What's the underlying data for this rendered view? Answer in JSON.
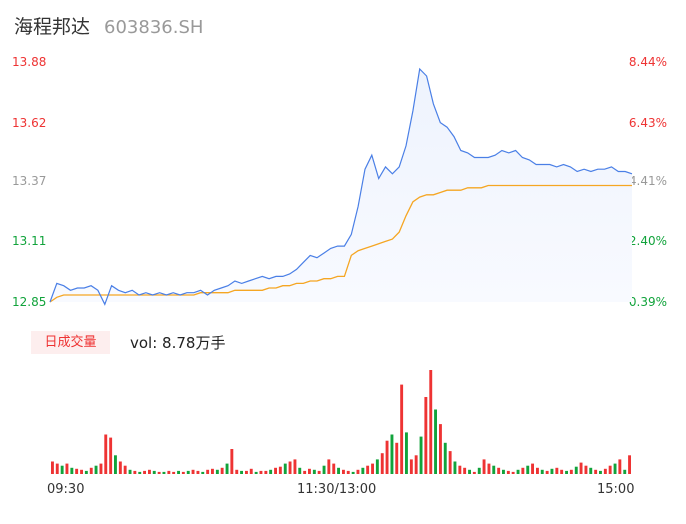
{
  "header": {
    "name": "海程邦达",
    "code": "603836.SH"
  },
  "volume_panel": {
    "tag": "日成交量",
    "label": "vol: 8.78万手"
  },
  "colors": {
    "price": "#4a7fe6",
    "avg": "#f5a623",
    "up": "#ee3333",
    "down": "#11a33b",
    "neutral": "#999999"
  },
  "chart_data": [
    {
      "type": "line",
      "ylim": [
        12.85,
        13.88
      ],
      "y_ticks": [
        {
          "label": "13.88",
          "value": 13.88,
          "pct": "8.44%",
          "color": "#ee3333"
        },
        {
          "label": "13.62",
          "value": 13.62,
          "pct": "6.43%",
          "color": "#ee3333"
        },
        {
          "label": "13.37",
          "value": 13.37,
          "pct": "4.41%",
          "color": "#999999"
        },
        {
          "label": "13.11",
          "value": 13.11,
          "pct": "2.40%",
          "color": "#11a33b"
        },
        {
          "label": "12.85",
          "value": 12.85,
          "pct": "0.39%",
          "color": "#11a33b"
        }
      ],
      "x_ticks": [
        "09:30",
        "11:30/13:00",
        "15:00"
      ],
      "series": [
        {
          "key": "price",
          "values": [
            12.85,
            12.93,
            12.92,
            12.9,
            12.91,
            12.91,
            12.92,
            12.9,
            12.84,
            12.92,
            12.9,
            12.89,
            12.9,
            12.88,
            12.89,
            12.88,
            12.89,
            12.88,
            12.89,
            12.88,
            12.89,
            12.89,
            12.9,
            12.88,
            12.9,
            12.91,
            12.92,
            12.94,
            12.93,
            12.94,
            12.95,
            12.96,
            12.95,
            12.96,
            12.96,
            12.97,
            12.99,
            13.02,
            13.05,
            13.04,
            13.06,
            13.08,
            13.09,
            13.09,
            13.14,
            13.26,
            13.42,
            13.48,
            13.38,
            13.43,
            13.4,
            13.43,
            13.52,
            13.67,
            13.85,
            13.82,
            13.7,
            13.62,
            13.6,
            13.56,
            13.5,
            13.49,
            13.47,
            13.47,
            13.47,
            13.48,
            13.5,
            13.49,
            13.5,
            13.47,
            13.46,
            13.44,
            13.44,
            13.44,
            13.43,
            13.44,
            13.43,
            13.41,
            13.42,
            13.41,
            13.42,
            13.42,
            13.43,
            13.41,
            13.41,
            13.4
          ]
        },
        {
          "key": "avg",
          "values": [
            12.85,
            12.87,
            12.88,
            12.88,
            12.88,
            12.88,
            12.88,
            12.88,
            12.88,
            12.88,
            12.88,
            12.88,
            12.88,
            12.88,
            12.88,
            12.88,
            12.88,
            12.88,
            12.88,
            12.88,
            12.88,
            12.88,
            12.89,
            12.89,
            12.89,
            12.89,
            12.89,
            12.9,
            12.9,
            12.9,
            12.9,
            12.9,
            12.91,
            12.91,
            12.92,
            12.92,
            12.93,
            12.93,
            12.94,
            12.94,
            12.95,
            12.95,
            12.96,
            12.96,
            13.05,
            13.07,
            13.08,
            13.09,
            13.1,
            13.11,
            13.12,
            13.15,
            13.22,
            13.28,
            13.3,
            13.31,
            13.31,
            13.32,
            13.33,
            13.33,
            13.33,
            13.34,
            13.34,
            13.34,
            13.35,
            13.35,
            13.35,
            13.35,
            13.35,
            13.35,
            13.35,
            13.35,
            13.35,
            13.35,
            13.35,
            13.35,
            13.35,
            13.35,
            13.35,
            13.35,
            13.35,
            13.35,
            13.35,
            13.35,
            13.35,
            13.35
          ]
        }
      ]
    },
    {
      "type": "bar",
      "title": "日成交量",
      "ylim": [
        0,
        100
      ],
      "values": [
        12,
        10,
        8,
        10,
        6,
        5,
        4,
        3,
        6,
        8,
        10,
        38,
        35,
        18,
        12,
        8,
        4,
        3,
        2,
        3,
        4,
        3,
        2,
        2,
        3,
        2,
        3,
        2,
        3,
        4,
        3,
        2,
        4,
        5,
        4,
        6,
        10,
        24,
        4,
        3,
        3,
        5,
        2,
        3,
        3,
        4,
        6,
        7,
        10,
        12,
        14,
        6,
        3,
        5,
        4,
        3,
        8,
        14,
        10,
        6,
        4,
        3,
        2,
        4,
        6,
        8,
        10,
        14,
        20,
        32,
        38,
        30,
        86,
        40,
        14,
        18,
        36,
        74,
        100,
        62,
        48,
        30,
        22,
        12,
        8,
        6,
        4,
        2,
        6,
        14,
        10,
        8,
        6,
        4,
        3,
        2,
        4,
        6,
        8,
        10,
        6,
        4,
        3,
        5,
        6,
        4,
        3,
        4,
        7,
        11,
        8,
        6,
        4,
        3,
        5,
        8,
        10,
        14,
        4,
        18
      ],
      "colors": [
        "up",
        "up",
        "down",
        "up",
        "down",
        "up",
        "up",
        "down",
        "up",
        "down",
        "up",
        "up",
        "up",
        "down",
        "up",
        "up",
        "down",
        "up",
        "down",
        "up",
        "up",
        "down",
        "up",
        "down",
        "up",
        "up",
        "down",
        "up",
        "down",
        "up",
        "up",
        "down",
        "up",
        "up",
        "down",
        "up",
        "down",
        "up",
        "up",
        "down",
        "up",
        "up",
        "down",
        "up",
        "up",
        "down",
        "up",
        "up",
        "down",
        "up",
        "up",
        "down",
        "up",
        "up",
        "down",
        "up",
        "down",
        "up",
        "up",
        "down",
        "up",
        "up",
        "down",
        "up",
        "down",
        "up",
        "up",
        "down",
        "up",
        "up",
        "down",
        "up",
        "up",
        "down",
        "up",
        "up",
        "down",
        "up",
        "up",
        "down",
        "up",
        "down",
        "up",
        "down",
        "up",
        "up",
        "down",
        "up",
        "down",
        "up",
        "up",
        "down",
        "up",
        "down",
        "up",
        "up",
        "down",
        "up",
        "down",
        "up",
        "up",
        "down",
        "up",
        "down",
        "up",
        "up",
        "down",
        "up",
        "down",
        "up",
        "up",
        "down",
        "up",
        "down",
        "up",
        "up",
        "down",
        "up",
        "down",
        "up"
      ]
    }
  ]
}
